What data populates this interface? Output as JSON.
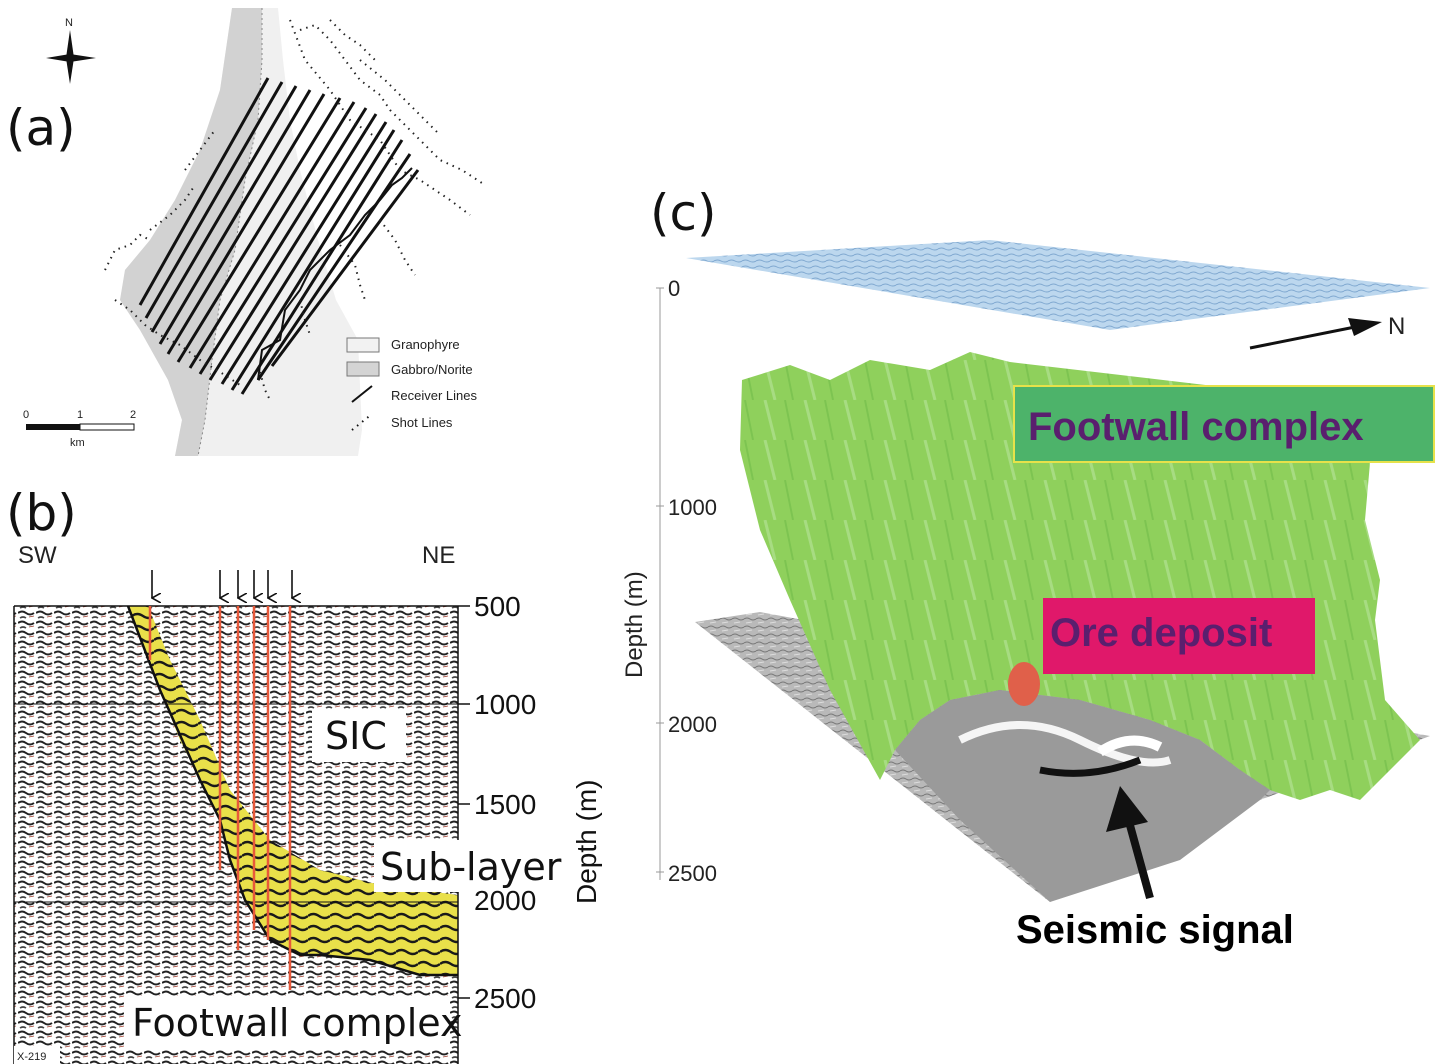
{
  "figure": {
    "panel_a": {
      "label": "(a)",
      "north": "N",
      "legend": [
        {
          "label": "Granophyre",
          "color": "#f2f2f2"
        },
        {
          "label": "Gabbro/Norite",
          "color": "#d4d4d4"
        },
        {
          "label": "Receiver Lines",
          "symbol": "solid-line"
        },
        {
          "label": "Shot Lines",
          "symbol": "dotted-line"
        }
      ],
      "scale": {
        "ticks": [
          "0",
          "1",
          "2"
        ],
        "unit": "km"
      }
    },
    "panel_b": {
      "label": "(b)",
      "left_direction": "SW",
      "right_direction": "NE",
      "depth_axis_label": "Depth (m)",
      "depth_ticks": [
        "500",
        "1000",
        "1500",
        "2000",
        "2500"
      ],
      "labels": {
        "sic": "SIC",
        "sublayer": "Sub-layer",
        "footwall": "Footwall complex"
      },
      "line_id": "X-219"
    },
    "panel_c": {
      "label": "(c)",
      "depth_axis_label": "Depth (m)",
      "depth_ticks": [
        "0",
        "1000",
        "2000",
        "2500"
      ],
      "north": "N",
      "labels": {
        "footwall": "Footwall complex",
        "ore": "Ore deposit",
        "signal": "Seismic signal"
      },
      "colors": {
        "footwall_box": "#4db36a",
        "ore_box": "#e0186a",
        "text": "#5a1f6e",
        "surface": "#8fc45a",
        "ore_body": "#e0604a"
      }
    }
  }
}
